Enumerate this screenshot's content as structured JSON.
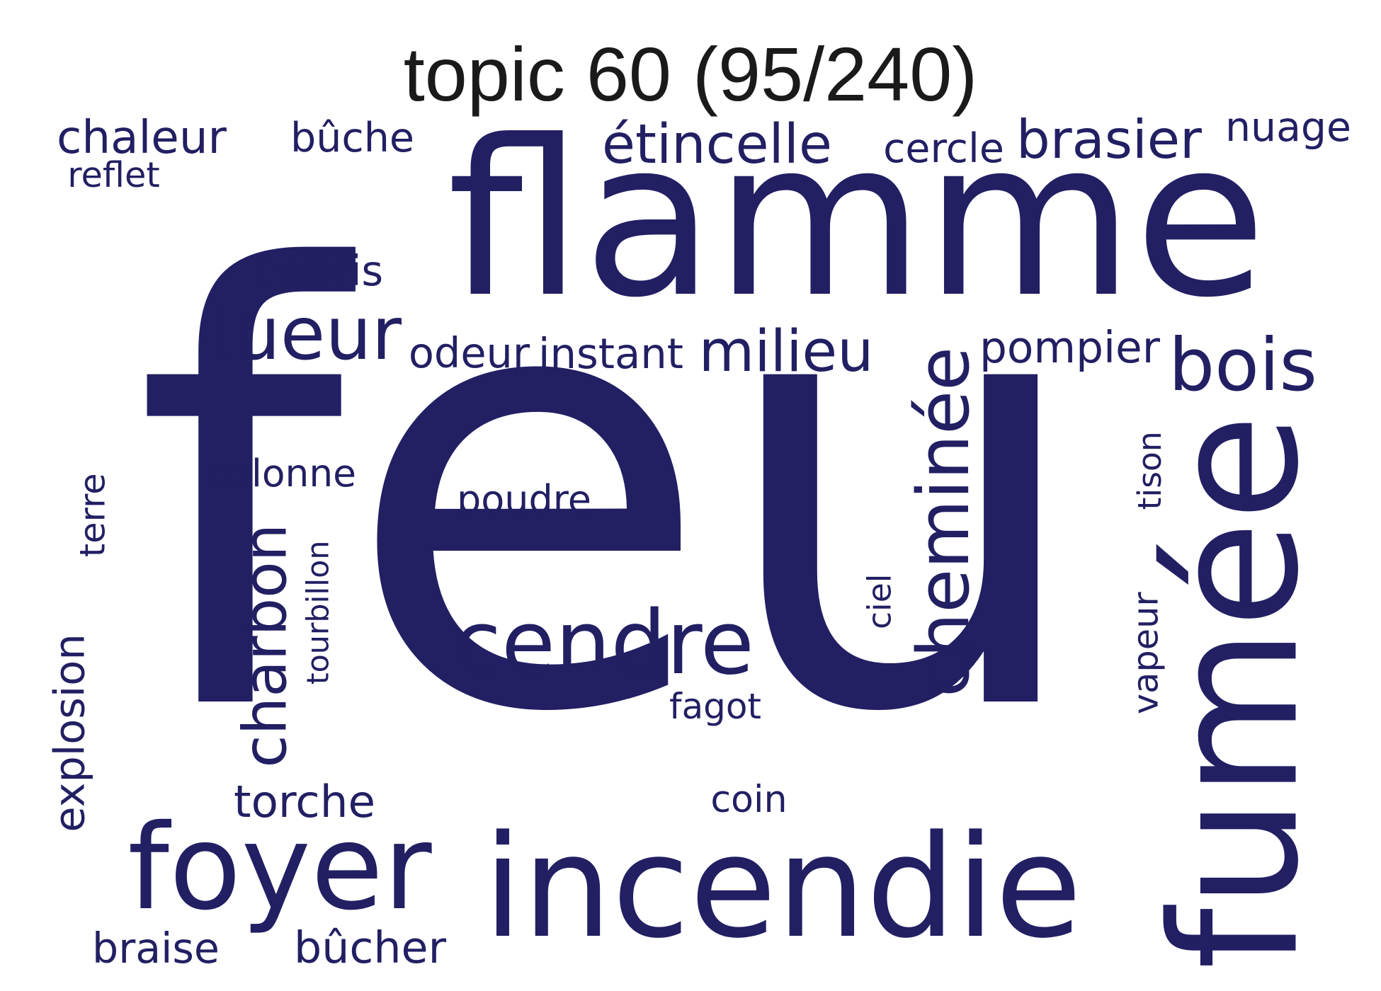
{
  "title": "topic 60 (95/240)",
  "colors": {
    "word": "#221f63",
    "title": "#1a1a1a",
    "background": "#ffffff"
  },
  "words": [
    {
      "text": "feu"
    },
    {
      "text": "flamme"
    },
    {
      "text": "fumée"
    },
    {
      "text": "incendie"
    },
    {
      "text": "foyer"
    },
    {
      "text": "cendre"
    },
    {
      "text": "lueur"
    },
    {
      "text": "cheminée"
    },
    {
      "text": "charbon"
    },
    {
      "text": "bois"
    },
    {
      "text": "étincelle"
    },
    {
      "text": "brasier"
    },
    {
      "text": "milieu"
    },
    {
      "text": "explosion"
    },
    {
      "text": "torche"
    },
    {
      "text": "braise"
    },
    {
      "text": "bûcher"
    },
    {
      "text": "chaleur"
    },
    {
      "text": "bûche"
    },
    {
      "text": "instant"
    },
    {
      "text": "odeur"
    },
    {
      "text": "pompier"
    },
    {
      "text": "débris"
    },
    {
      "text": "cercle"
    },
    {
      "text": "nuage"
    },
    {
      "text": "coin"
    },
    {
      "text": "poudre"
    },
    {
      "text": "colonne"
    },
    {
      "text": "terre"
    },
    {
      "text": "tourbillon"
    },
    {
      "text": "vapeur"
    },
    {
      "text": "tison"
    },
    {
      "text": "fagot"
    },
    {
      "text": "reflet"
    },
    {
      "text": "ciel"
    }
  ]
}
